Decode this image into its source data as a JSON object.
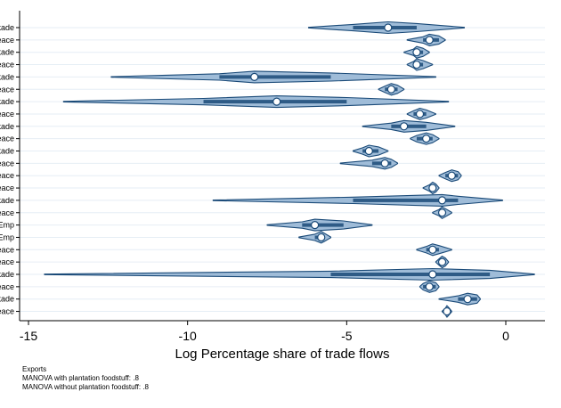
{
  "chart_data": {
    "type": "violin",
    "xlabel": "Log Percentage share of trade flows",
    "ylabel": "",
    "xlim": [
      -15,
      1
    ],
    "xticks": [
      -15,
      -10,
      -5,
      0
    ],
    "grid": "horizontal",
    "colors": {
      "fill": "#9fbcd8",
      "stroke": "#1a4a78",
      "median_fill": "#ffffff"
    },
    "rows": [
      {
        "label": "kade",
        "min": -6.2,
        "q1": -4.8,
        "median": -3.7,
        "q3": -2.8,
        "max": -1.3
      },
      {
        "label": "eace",
        "min": -3.1,
        "q1": -2.6,
        "median": -2.4,
        "q3": -2.1,
        "max": -1.9
      },
      {
        "label": "kade",
        "min": -3.2,
        "q1": -2.9,
        "median": -2.8,
        "q3": -2.6,
        "max": -2.4
      },
      {
        "label": "eace",
        "min": -3.1,
        "q1": -2.9,
        "median": -2.8,
        "q3": -2.6,
        "max": -2.3
      },
      {
        "label": "kade",
        "min": -12.4,
        "q1": -9.0,
        "median": -7.9,
        "q3": -5.5,
        "max": -2.2
      },
      {
        "label": "eace",
        "min": -4.0,
        "q1": -3.8,
        "median": -3.6,
        "q3": -3.4,
        "max": -3.2
      },
      {
        "label": "kade",
        "min": -13.9,
        "q1": -9.5,
        "median": -7.2,
        "q3": -5.0,
        "max": -1.8
      },
      {
        "label": "eace",
        "min": -3.1,
        "q1": -2.9,
        "median": -2.7,
        "q3": -2.5,
        "max": -2.2
      },
      {
        "label": "kade",
        "min": -4.5,
        "q1": -3.6,
        "median": -3.2,
        "q3": -2.5,
        "max": -1.6
      },
      {
        "label": "eace",
        "min": -3.0,
        "q1": -2.8,
        "median": -2.5,
        "q3": -2.3,
        "max": -2.1
      },
      {
        "label": "kade",
        "min": -4.8,
        "q1": -4.5,
        "median": -4.3,
        "q3": -4.0,
        "max": -3.7
      },
      {
        "label": "eace",
        "min": -5.2,
        "q1": -4.2,
        "median": -3.8,
        "q3": -3.6,
        "max": -3.4
      },
      {
        "label": "eace",
        "min": -2.1,
        "q1": -1.9,
        "median": -1.7,
        "q3": -1.5,
        "max": -1.4
      },
      {
        "label": "eace",
        "min": -2.6,
        "q1": -2.4,
        "median": -2.3,
        "q3": -2.2,
        "max": -2.1
      },
      {
        "label": "kade",
        "min": -9.2,
        "q1": -4.8,
        "median": -2.0,
        "q3": -1.5,
        "max": -0.1
      },
      {
        "label": "eace",
        "min": -2.3,
        "q1": -2.1,
        "median": -2.0,
        "q3": -1.9,
        "max": -1.7
      },
      {
        "label": "Emp",
        "min": -7.5,
        "q1": -6.4,
        "median": -6.0,
        "q3": -5.1,
        "max": -4.2
      },
      {
        "label": "Emp",
        "min": -6.5,
        "q1": -6.0,
        "median": -5.8,
        "q3": -5.7,
        "max": -5.5
      },
      {
        "label": "eace",
        "min": -2.8,
        "q1": -2.5,
        "median": -2.3,
        "q3": -2.1,
        "max": -1.7
      },
      {
        "label": "eace",
        "min": -2.2,
        "q1": -2.1,
        "median": -2.0,
        "q3": -1.9,
        "max": -1.8
      },
      {
        "label": "kade",
        "min": -14.5,
        "q1": -5.5,
        "median": -2.3,
        "q3": -0.5,
        "max": 0.9
      },
      {
        "label": "eace",
        "min": -2.7,
        "q1": -2.6,
        "median": -2.4,
        "q3": -2.2,
        "max": -2.1
      },
      {
        "label": "kade",
        "min": -2.1,
        "q1": -1.5,
        "median": -1.2,
        "q3": -0.9,
        "max": -0.8
      },
      {
        "label": "eace",
        "min": -2.0,
        "q1": -1.9,
        "median": -1.85,
        "q3": -1.8,
        "max": -1.7
      }
    ]
  },
  "notes": {
    "line1": "Exports",
    "line2": "MANOVA with plantation foodstuff: .8",
    "line3": "MANOVA without plantation foodstuff: .8"
  }
}
